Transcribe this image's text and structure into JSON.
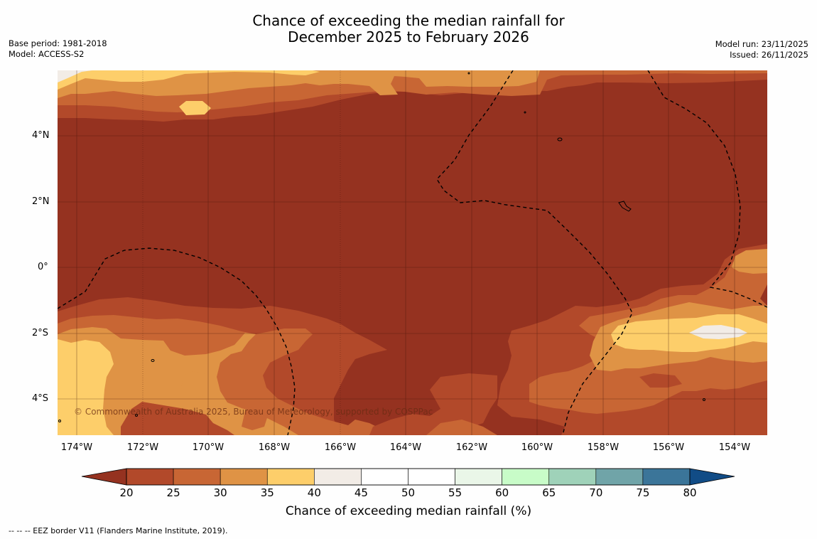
{
  "title": {
    "line1": "Chance of exceeding the median rainfall for",
    "line2": "December 2025 to February 2026"
  },
  "meta_left": {
    "base_period": "Base period: 1981-2018",
    "model": "Model: ACCESS-S2"
  },
  "meta_right": {
    "model_run": "Model run: 23/11/2025",
    "issued": "Issued: 26/11/2025"
  },
  "map": {
    "lat_ticks": [
      "4°N",
      "2°N",
      "0°",
      "2°S",
      "4°S"
    ],
    "lon_ticks": [
      "174°W",
      "172°W",
      "170°W",
      "168°W",
      "166°W",
      "164°W",
      "162°W",
      "160°W",
      "158°W",
      "156°W",
      "154°W"
    ],
    "copyright": "© Commonwealth of Australia 2025, Bureau of Meteorology, supported by COSPPac",
    "background_color": "#953220"
  },
  "colorbar": {
    "label": "Chance of exceeding median rainfall (%)",
    "ticks": [
      "20",
      "25",
      "30",
      "35",
      "40",
      "45",
      "50",
      "55",
      "60",
      "65",
      "70",
      "75",
      "80"
    ],
    "colors": [
      "#953220",
      "#b2492a",
      "#c86634",
      "#df9345",
      "#fdce6a",
      "#f2ece6",
      "#ffffff",
      "#ffffff",
      "#eaf6e8",
      "#c8fcc8",
      "#9fd2b9",
      "#70a4a8",
      "#3b7599",
      "#114c86"
    ]
  },
  "footnote": "--  --  -- EEZ border V11 (Flanders Marine Institute, 2019)."
}
